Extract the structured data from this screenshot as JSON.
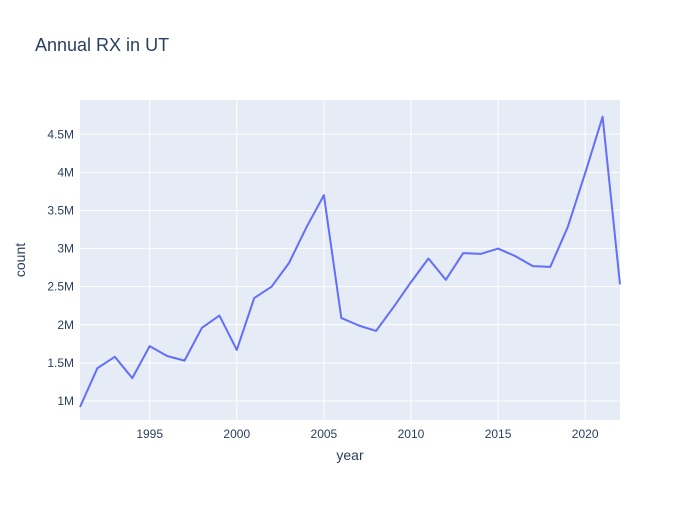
{
  "chart_data": {
    "type": "line",
    "title": "Annual RX in UT",
    "xlabel": "year",
    "ylabel": "count",
    "xlim": [
      1991,
      2022
    ],
    "ylim": [
      750000,
      4950000
    ],
    "x_ticks": [
      1995,
      2000,
      2005,
      2010,
      2015,
      2020
    ],
    "y_ticks": [
      1000000,
      1500000,
      2000000,
      2500000,
      3000000,
      3500000,
      4000000,
      4500000
    ],
    "y_tick_labels": [
      "1M",
      "1.5M",
      "2M",
      "2.5M",
      "3M",
      "3.5M",
      "4M",
      "4.5M"
    ],
    "grid": true,
    "colors": {
      "line": "#636efa",
      "plot_bg": "#e5ecf6",
      "grid": "#ffffff",
      "text": "#2a3f5f"
    },
    "series": [
      {
        "x": [
          1991,
          1992,
          1993,
          1994,
          1995,
          1996,
          1997,
          1998,
          1999,
          2000,
          2001,
          2002,
          2003,
          2004,
          2005,
          2006,
          2007,
          2008,
          2009,
          2010,
          2011,
          2012,
          2013,
          2014,
          2015,
          2016,
          2017,
          2018,
          2019,
          2020,
          2021,
          2022
        ],
        "values": [
          920000,
          1430000,
          1580000,
          1300000,
          1720000,
          1590000,
          1530000,
          1960000,
          2120000,
          1670000,
          2350000,
          2500000,
          2810000,
          3280000,
          3700000,
          2090000,
          1990000,
          1920000,
          2230000,
          2560000,
          2870000,
          2590000,
          2940000,
          2930000,
          3000000,
          2900000,
          2770000,
          2760000,
          3280000,
          3990000,
          4730000,
          2530000
        ]
      }
    ]
  }
}
